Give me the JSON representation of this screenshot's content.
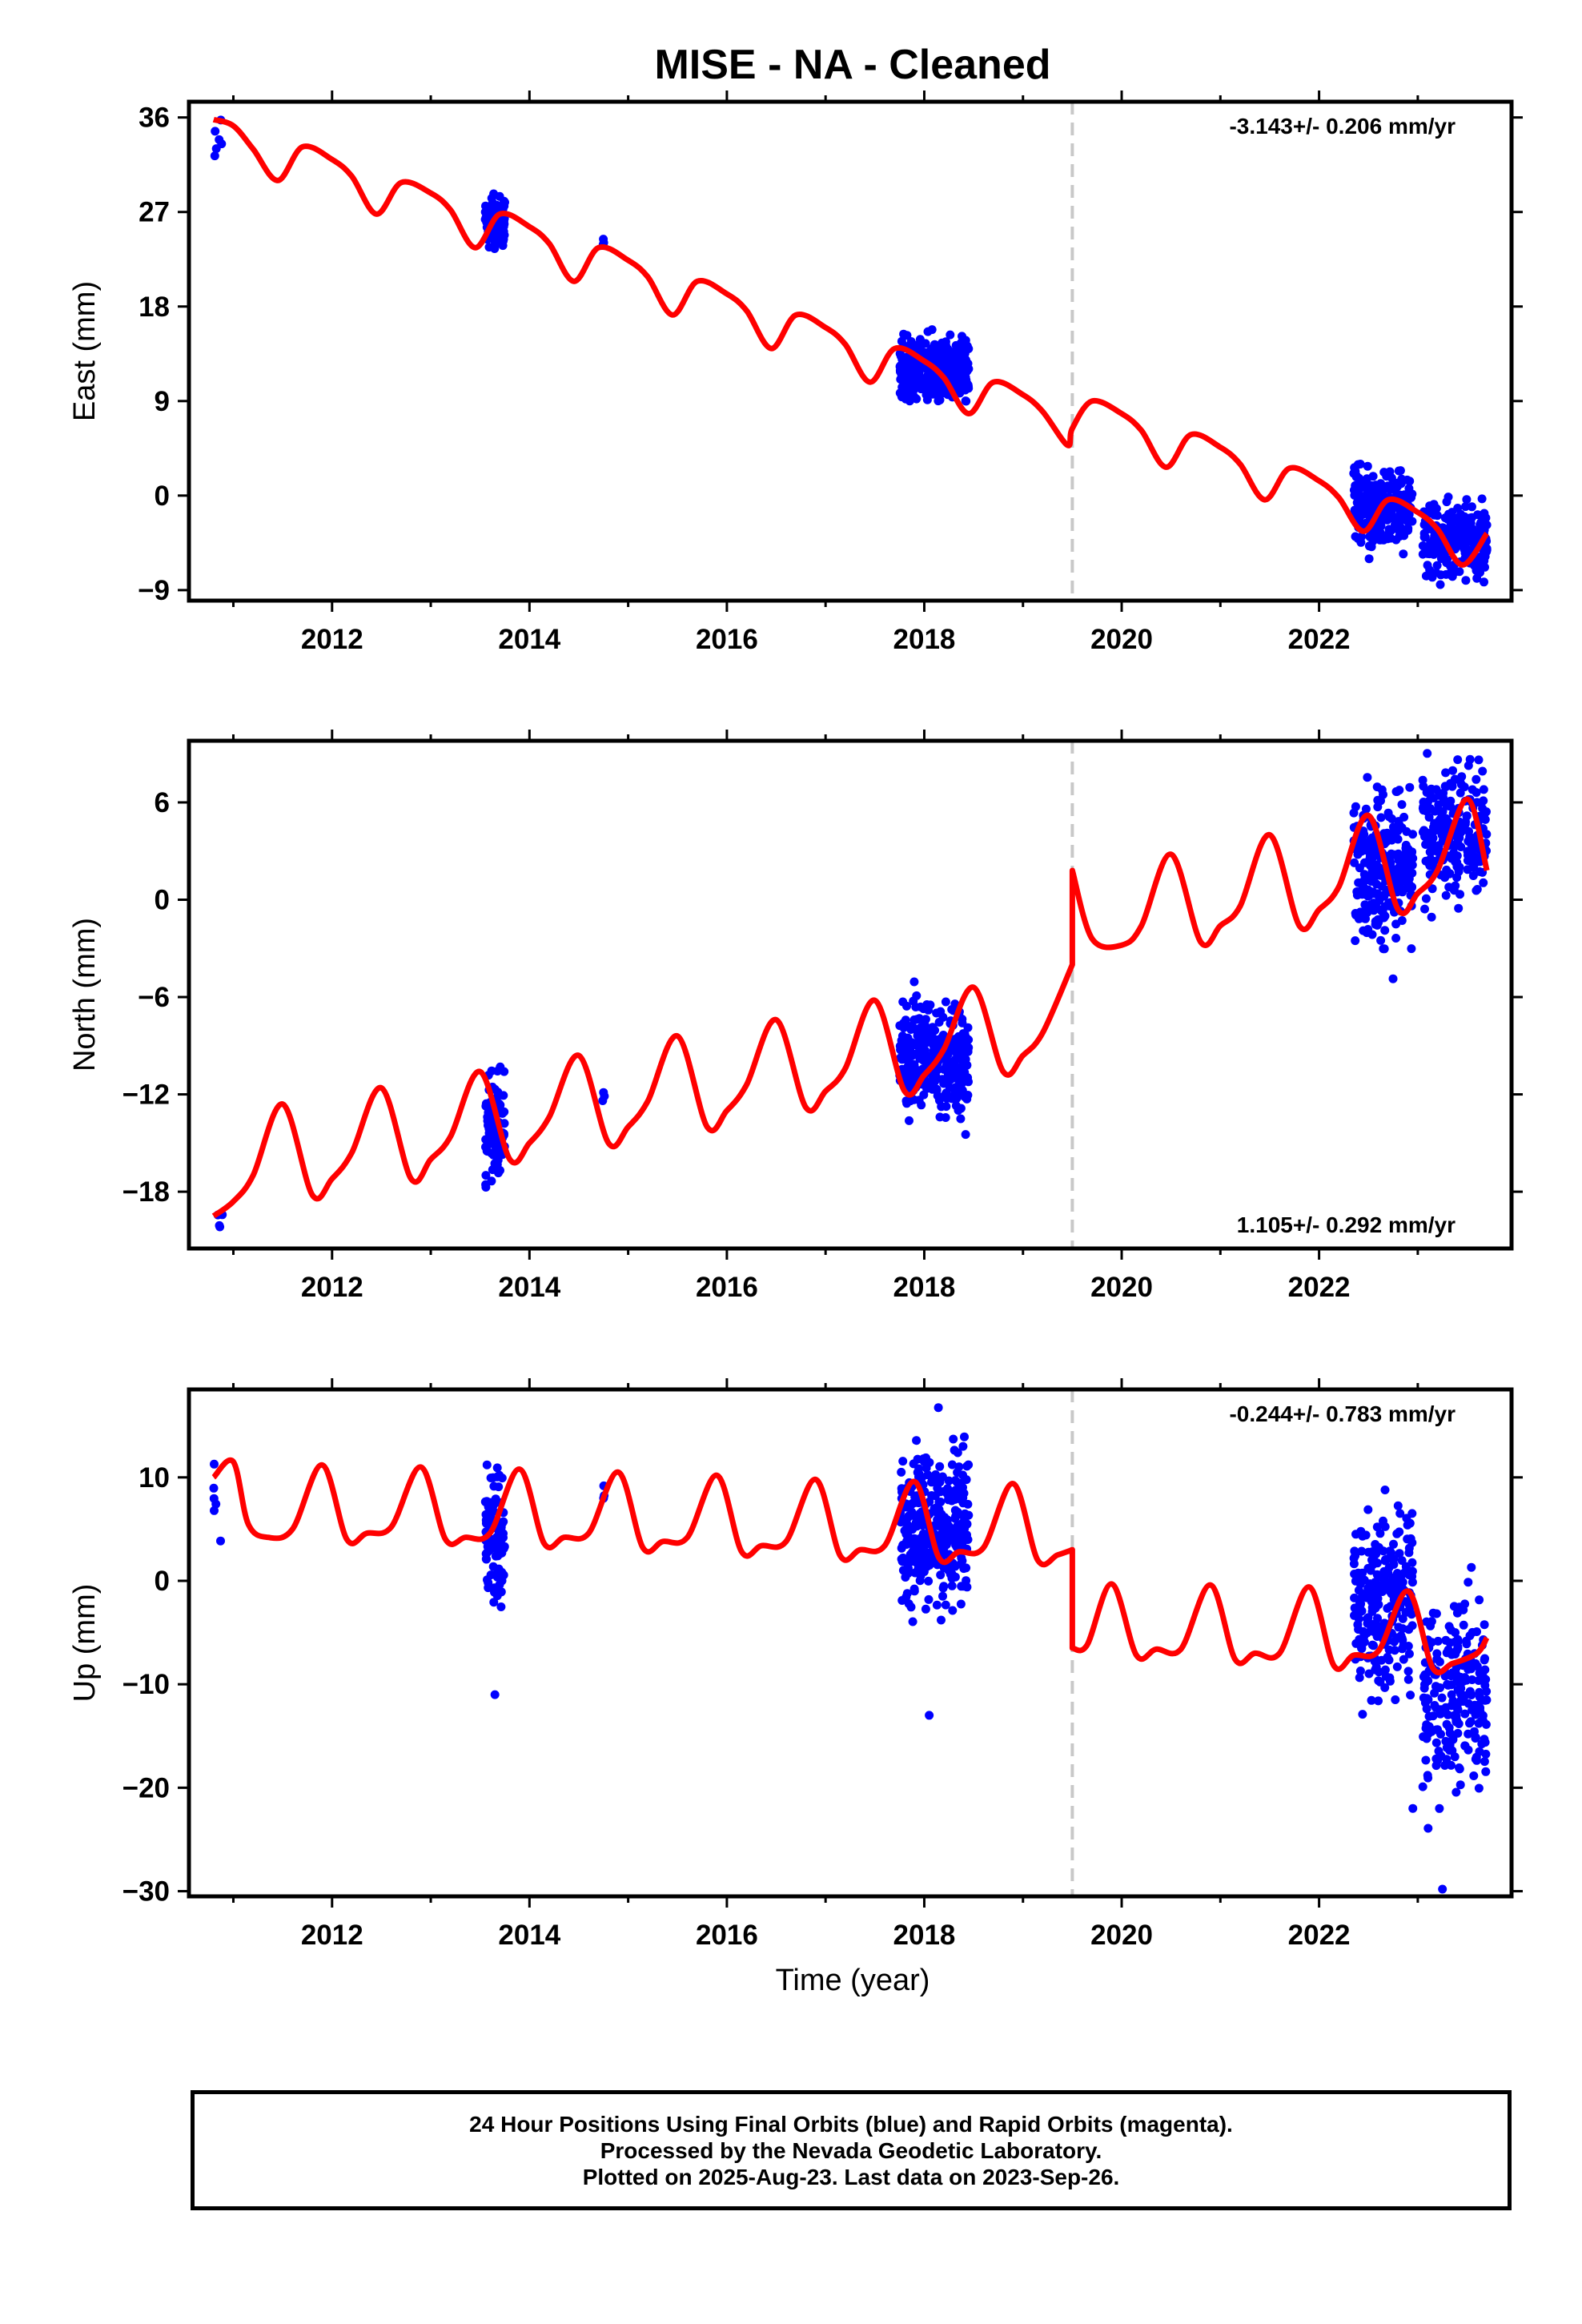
{
  "title": "MISE  - NA - Cleaned",
  "xlabel": "Time (year)",
  "caption": [
    "24 Hour Positions Using Final Orbits (blue) and Rapid Orbits (magenta).",
    "Processed by the Nevada Geodetic Laboratory.",
    "Plotted on 2025-Aug-23. Last data on 2023-Sep-26."
  ],
  "colors": {
    "data": "#0000ff",
    "model": "#ff0000",
    "event_line": "#c8c8c8",
    "frame": "#000000"
  },
  "chart_data": [
    {
      "type": "scatter",
      "component": "East",
      "ylabel": "East (mm)",
      "rate_label": "-3.143+/- 0.206 mm/yr",
      "xlim": [
        2010.55,
        2023.95
      ],
      "ylim": [
        -10,
        37.5
      ],
      "yticks": [
        -9,
        0,
        9,
        18,
        27,
        36
      ],
      "xticks": [
        2012,
        2014,
        2016,
        2018,
        2020,
        2022
      ],
      "event_line_x": 2019.5,
      "grid": false,
      "series": [
        {
          "role": "data",
          "clusters": [
            {
              "x_start": 2010.8,
              "x_end": 2010.9,
              "mean": 35.2,
              "scatter": 0.9,
              "n": 6
            },
            {
              "x_start": 2013.55,
              "x_end": 2013.75,
              "mean": 25.9,
              "scatter": 1.2,
              "n": 90
            },
            {
              "x_start": 2014.74,
              "x_end": 2014.76,
              "mean": 24.0,
              "scatter": 0.3,
              "n": 3
            },
            {
              "x_start": 2017.75,
              "x_end": 2018.45,
              "mean": 12.0,
              "scatter": 1.4,
              "n": 330
            },
            {
              "x_start": 2022.35,
              "x_end": 2022.95,
              "mean": -1.0,
              "scatter": 1.8,
              "n": 250
            },
            {
              "x_start": 2023.05,
              "x_end": 2023.7,
              "mean": -4.2,
              "scatter": 1.8,
              "n": 220
            }
          ]
        },
        {
          "role": "model",
          "x": [
            2010.8,
            2011.0,
            2011.2,
            2011.45,
            2011.7,
            2012.0,
            2012.2,
            2012.45,
            2012.7,
            2013.0,
            2013.2,
            2013.45,
            2013.7,
            2014.0,
            2014.2,
            2014.45,
            2014.7,
            2015.0,
            2015.2,
            2015.45,
            2015.7,
            2016.0,
            2016.2,
            2016.45,
            2016.7,
            2017.0,
            2017.2,
            2017.45,
            2017.7,
            2018.0,
            2018.2,
            2018.45,
            2018.7,
            2019.0,
            2019.2,
            2019.45,
            2019.5,
            2019.7,
            2020.0,
            2020.2,
            2020.45,
            2020.7,
            2021.0,
            2021.2,
            2021.45,
            2021.7,
            2022.0,
            2022.2,
            2022.45,
            2022.7,
            2023.0,
            2023.2,
            2023.45,
            2023.7
          ],
          "y": [
            35.8,
            35.2,
            33.0,
            30.0,
            33.2,
            32.0,
            30.4,
            26.8,
            29.8,
            28.8,
            27.2,
            23.6,
            26.8,
            25.6,
            24.0,
            20.4,
            23.6,
            22.4,
            20.8,
            17.2,
            20.4,
            19.2,
            17.6,
            14.0,
            17.2,
            16.0,
            14.4,
            10.8,
            14.0,
            12.8,
            11.2,
            7.8,
            10.8,
            9.6,
            8.0,
            4.8,
            6.4,
            9.0,
            7.8,
            6.2,
            2.7,
            5.8,
            4.6,
            3.0,
            -0.4,
            2.6,
            1.4,
            -0.2,
            -3.4,
            -0.4,
            -1.6,
            -3.2,
            -6.6,
            -3.6
          ]
        }
      ]
    },
    {
      "type": "scatter",
      "component": "North",
      "ylabel": "North (mm)",
      "rate_label": "1.105+/- 0.292 mm/yr",
      "xlim": [
        2010.55,
        2023.95
      ],
      "ylim": [
        -21.5,
        9.8
      ],
      "yticks": [
        -18,
        -12,
        -6,
        0,
        6
      ],
      "xticks": [
        2012,
        2014,
        2016,
        2018,
        2020,
        2022
      ],
      "event_line_x": 2019.5,
      "grid": false,
      "series": [
        {
          "role": "data",
          "clusters": [
            {
              "x_start": 2010.8,
              "x_end": 2010.9,
              "mean": -20.0,
              "scatter": 0.5,
              "n": 5
            },
            {
              "x_start": 2013.55,
              "x_end": 2013.75,
              "mean": -14.2,
              "scatter": 1.6,
              "n": 90
            },
            {
              "x_start": 2014.74,
              "x_end": 2014.76,
              "mean": -12.0,
              "scatter": 0.3,
              "n": 3
            },
            {
              "x_start": 2017.75,
              "x_end": 2018.45,
              "mean": -9.8,
              "scatter": 1.6,
              "n": 330
            },
            {
              "x_start": 2022.35,
              "x_end": 2022.95,
              "mean": 2.0,
              "scatter": 2.2,
              "n": 250
            },
            {
              "x_start": 2023.05,
              "x_end": 2023.7,
              "mean": 4.0,
              "scatter": 2.0,
              "n": 220
            }
          ]
        },
        {
          "role": "model",
          "x": [
            2010.8,
            2011.0,
            2011.2,
            2011.5,
            2011.8,
            2012.0,
            2012.2,
            2012.5,
            2012.8,
            2013.0,
            2013.2,
            2013.5,
            2013.8,
            2014.0,
            2014.2,
            2014.5,
            2014.8,
            2015.0,
            2015.2,
            2015.5,
            2015.8,
            2016.0,
            2016.2,
            2016.5,
            2016.8,
            2017.0,
            2017.2,
            2017.5,
            2017.8,
            2018.0,
            2018.2,
            2018.5,
            2018.8,
            2019.0,
            2019.2,
            2019.5,
            2019.5,
            2019.7,
            2020.0,
            2020.2,
            2020.5,
            2020.8,
            2021.0,
            2021.2,
            2021.5,
            2021.8,
            2022.0,
            2022.2,
            2022.5,
            2022.8,
            2023.0,
            2023.2,
            2023.5,
            2023.7
          ],
          "y": [
            -19.5,
            -18.6,
            -17.0,
            -12.6,
            -18.2,
            -17.2,
            -15.6,
            -11.6,
            -17.2,
            -16.0,
            -14.6,
            -10.6,
            -16.0,
            -15.0,
            -13.4,
            -9.6,
            -15.0,
            -14.0,
            -12.4,
            -8.4,
            -14.0,
            -13.0,
            -11.4,
            -7.4,
            -12.8,
            -11.8,
            -10.4,
            -6.2,
            -11.8,
            -10.8,
            -9.2,
            -5.4,
            -10.6,
            -9.6,
            -8.2,
            -4.0,
            1.8,
            -2.4,
            -2.8,
            -1.6,
            2.8,
            -2.6,
            -1.6,
            -0.4,
            4.0,
            -1.6,
            -0.6,
            0.8,
            5.2,
            -0.6,
            0.4,
            1.8,
            6.2,
            1.8
          ]
        }
      ]
    },
    {
      "type": "scatter",
      "component": "Up",
      "ylabel": "Up (mm)",
      "rate_label": "-0.244+/- 0.783 mm/yr",
      "xlim": [
        2010.55,
        2023.95
      ],
      "ylim": [
        -30.5,
        18.5
      ],
      "yticks": [
        -30,
        -20,
        -10,
        0,
        10
      ],
      "xticks": [
        2012,
        2014,
        2016,
        2018,
        2020,
        2022
      ],
      "event_line_x": 2019.5,
      "grid": false,
      "series": [
        {
          "role": "data",
          "clusters": [
            {
              "x_start": 2010.8,
              "x_end": 2010.9,
              "mean": 8.0,
              "scatter": 4.5,
              "n": 6
            },
            {
              "x_start": 2013.55,
              "x_end": 2013.75,
              "mean": 4.0,
              "scatter": 3.5,
              "n": 90
            },
            {
              "x_start": 2014.74,
              "x_end": 2014.76,
              "mean": 8.5,
              "scatter": 0.5,
              "n": 3
            },
            {
              "x_start": 2017.75,
              "x_end": 2018.45,
              "mean": 5.0,
              "scatter": 3.8,
              "n": 330
            },
            {
              "x_start": 2022.35,
              "x_end": 2022.95,
              "mean": -2.0,
              "scatter": 4.0,
              "n": 250
            },
            {
              "x_start": 2023.05,
              "x_end": 2023.7,
              "mean": -10.5,
              "scatter": 4.5,
              "n": 220
            }
          ],
          "outliers": [
            {
              "x": 2013.65,
              "y": -11.0
            },
            {
              "x": 2018.05,
              "y": -13.0
            },
            {
              "x": 2022.95,
              "y": -22.0
            },
            {
              "x": 2023.25,
              "y": -29.8
            }
          ]
        },
        {
          "role": "model",
          "x": [
            2010.8,
            2011.0,
            2011.15,
            2011.35,
            2011.6,
            2011.9,
            2012.15,
            2012.35,
            2012.6,
            2012.9,
            2013.15,
            2013.35,
            2013.6,
            2013.9,
            2014.15,
            2014.35,
            2014.6,
            2014.9,
            2015.15,
            2015.35,
            2015.6,
            2015.9,
            2016.15,
            2016.35,
            2016.6,
            2016.9,
            2017.15,
            2017.35,
            2017.6,
            2017.9,
            2018.15,
            2018.35,
            2018.6,
            2018.9,
            2019.15,
            2019.35,
            2019.5,
            2019.5,
            2019.65,
            2019.9,
            2020.15,
            2020.35,
            2020.6,
            2020.9,
            2021.15,
            2021.35,
            2021.6,
            2021.9,
            2022.15,
            2022.35,
            2022.6,
            2022.9,
            2023.15,
            2023.35,
            2023.6,
            2023.7
          ],
          "y": [
            10.0,
            11.5,
            5.5,
            4.2,
            5.0,
            11.2,
            4.0,
            4.6,
            5.2,
            11.0,
            4.0,
            4.2,
            4.6,
            10.8,
            3.6,
            4.2,
            4.6,
            10.5,
            3.2,
            3.8,
            4.2,
            10.2,
            2.8,
            3.4,
            3.8,
            9.8,
            2.4,
            3.0,
            3.4,
            9.6,
            2.2,
            2.8,
            3.2,
            9.4,
            2.0,
            2.5,
            3.0,
            -6.5,
            -6.2,
            -0.3,
            -7.2,
            -6.6,
            -6.6,
            -0.4,
            -7.6,
            -7.0,
            -7.0,
            -0.6,
            -8.2,
            -7.2,
            -6.8,
            -1.0,
            -8.4,
            -8.0,
            -7.0,
            -5.5
          ]
        }
      ]
    }
  ]
}
